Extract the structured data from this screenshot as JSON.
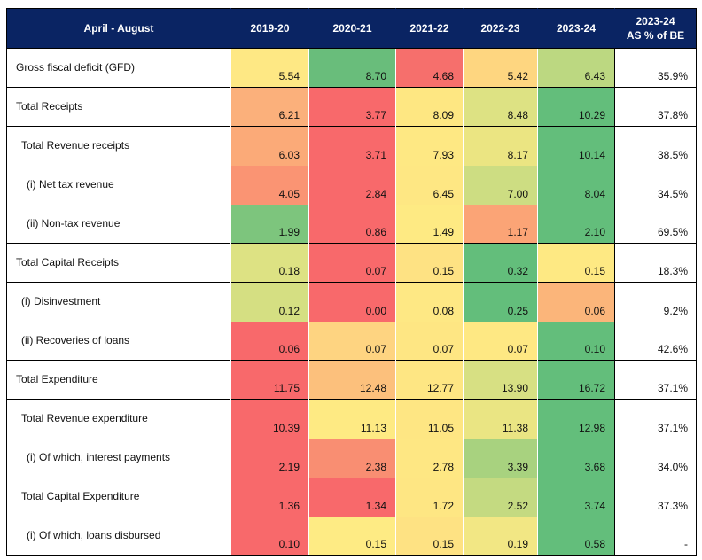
{
  "table": {
    "columns": [
      "April - August",
      "2019-20",
      "2020-21",
      "2021-22",
      "2022-23",
      "2023-24",
      [
        "2023-24",
        "AS % of BE"
      ]
    ],
    "rows": [
      {
        "label": "Gross fiscal deficit  (GFD)",
        "level": 0,
        "group_start": true,
        "values": [
          "5.54",
          "8.70",
          "4.68",
          "5.42",
          "6.43"
        ],
        "pct": "35.9%",
        "colors": [
          "#fee884",
          "#69bd7b",
          "#f66f6c",
          "#fed680",
          "#bcd881"
        ]
      },
      {
        "label": "Total Receipts",
        "level": 0,
        "group_start": true,
        "values": [
          "6.21",
          "3.77",
          "8.09",
          "8.48",
          "10.29"
        ],
        "pct": "37.8%",
        "colors": [
          "#fbb07b",
          "#f8696b",
          "#fee782",
          "#dde283",
          "#63be7b"
        ]
      },
      {
        "label": "Total Revenue receipts",
        "level": 1,
        "group_start": true,
        "values": [
          "6.03",
          "3.71",
          "7.93",
          "8.17",
          "10.14"
        ],
        "pct": "38.5%",
        "colors": [
          "#fbaa78",
          "#f8696b",
          "#fee883",
          "#ebe582",
          "#63be7b"
        ]
      },
      {
        "label": "(i) Net tax revenue",
        "level": 2,
        "group_start": false,
        "values": [
          "4.05",
          "2.84",
          "6.45",
          "7.00",
          "8.04"
        ],
        "pct": "34.5%",
        "colors": [
          "#fa9473",
          "#f8696b",
          "#fee783",
          "#cddd82",
          "#63be7b"
        ]
      },
      {
        "label": "(ii) Non-tax revenue",
        "level": 2,
        "group_start": false,
        "values": [
          "1.99",
          "0.86",
          "1.49",
          "1.17",
          "2.10"
        ],
        "pct": "69.5%",
        "colors": [
          "#7dc57d",
          "#f8696b",
          "#feea83",
          "#fba476",
          "#63be7b"
        ]
      },
      {
        "label": "Total Capital Receipts",
        "level": 0,
        "group_start": true,
        "values": [
          "0.18",
          "0.07",
          "0.15",
          "0.32",
          "0.15"
        ],
        "pct": "18.3%",
        "colors": [
          "#dde283",
          "#f8696b",
          "#fee283",
          "#63be7b",
          "#fee983"
        ]
      },
      {
        "label": "(i) Disinvestment",
        "level": 1,
        "group_start": true,
        "values": [
          "0.12",
          "0.00",
          "0.08",
          "0.25",
          "0.06"
        ],
        "pct": "9.2%",
        "colors": [
          "#d5df82",
          "#f8696b",
          "#fee884",
          "#63be7b",
          "#fbb57a"
        ]
      },
      {
        "label": "(ii) Recoveries of loans",
        "level": 1,
        "group_start": false,
        "values": [
          "0.06",
          "0.07",
          "0.07",
          "0.07",
          "0.10"
        ],
        "pct": "42.6%",
        "colors": [
          "#f8696b",
          "#fed481",
          "#fee683",
          "#fee883",
          "#63be7b"
        ]
      },
      {
        "label": "Total Expenditure",
        "level": 0,
        "group_start": true,
        "values": [
          "11.75",
          "12.48",
          "12.77",
          "13.90",
          "16.72"
        ],
        "pct": "37.1%",
        "colors": [
          "#f8696b",
          "#fcc07c",
          "#fee683",
          "#d7e083",
          "#63be7b"
        ]
      },
      {
        "label": "Total Revenue expenditure",
        "level": 1,
        "group_start": true,
        "values": [
          "10.39",
          "11.13",
          "11.05",
          "11.38",
          "12.98"
        ],
        "pct": "37.1%",
        "colors": [
          "#f8696b",
          "#feea83",
          "#fee683",
          "#eae583",
          "#63be7b"
        ]
      },
      {
        "label": "(i) Of which, interest  payments",
        "level": 2,
        "group_start": false,
        "values": [
          "2.19",
          "2.38",
          "2.78",
          "3.39",
          "3.68"
        ],
        "pct": "34.0%",
        "colors": [
          "#f8696b",
          "#f98e72",
          "#fee783",
          "#a8d27f",
          "#63be7b"
        ]
      },
      {
        "label": "Total Capital Expenditure",
        "level": 1,
        "group_start": false,
        "values": [
          "1.36",
          "1.34",
          "1.72",
          "2.52",
          "3.74"
        ],
        "pct": "37.3%",
        "colors": [
          "#f8696b",
          "#f8696b",
          "#fee683",
          "#c4da81",
          "#63be7b"
        ]
      },
      {
        "label": "(i) Of which, loans  disbursed",
        "level": 2,
        "group_start": false,
        "values": [
          "0.10",
          "0.15",
          "0.15",
          "0.19",
          "0.58"
        ],
        "pct": "-",
        "colors": [
          "#f8696b",
          "#feeb84",
          "#fee283",
          "#f2e784",
          "#63be7b"
        ]
      }
    ]
  }
}
